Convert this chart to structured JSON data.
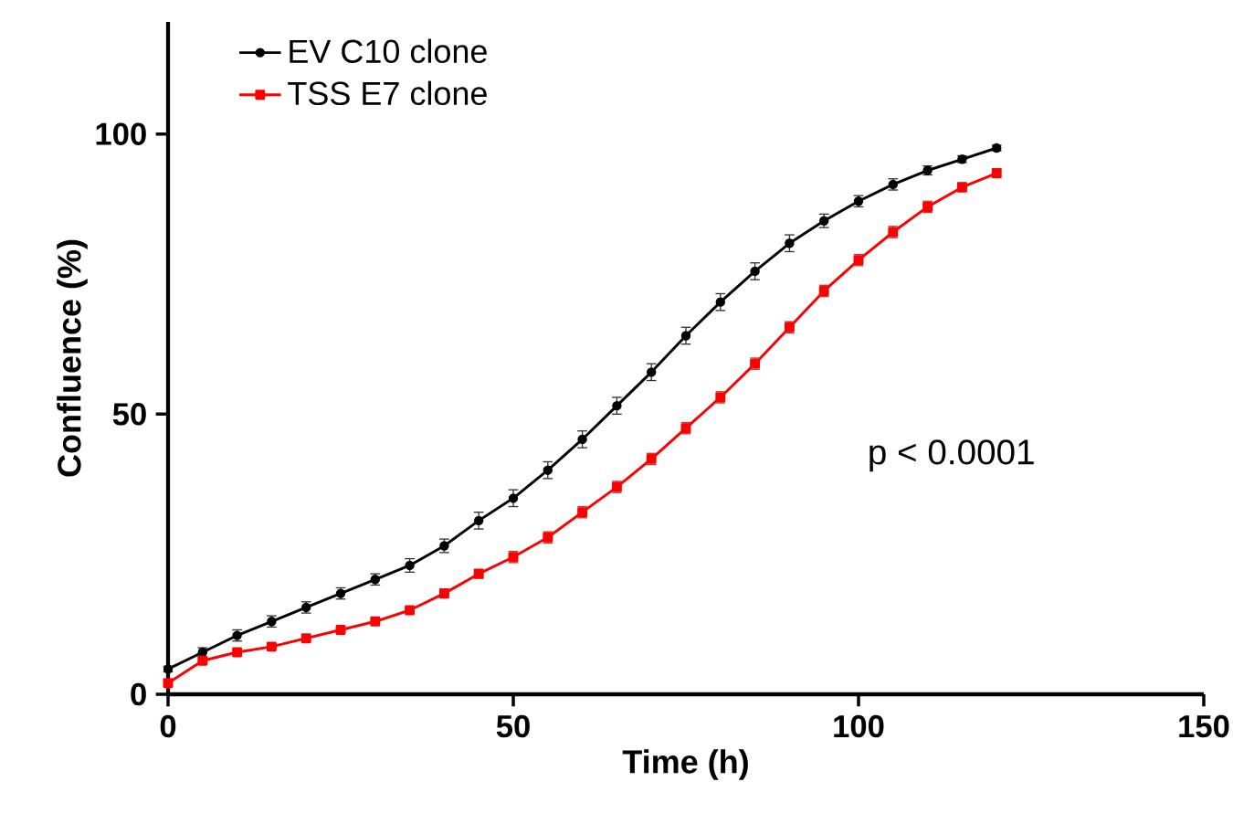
{
  "chart_data": {
    "type": "line",
    "xlabel": "Time (h)",
    "ylabel": "Confluence (%)",
    "x": [
      0,
      5,
      10,
      15,
      20,
      25,
      30,
      35,
      40,
      45,
      50,
      55,
      60,
      65,
      70,
      75,
      80,
      85,
      90,
      95,
      100,
      105,
      110,
      115,
      120
    ],
    "series": [
      {
        "name": "EV C10 clone",
        "color": "#000000",
        "marker": "circle",
        "values": [
          4.5,
          7.5,
          10.5,
          13,
          15.5,
          18,
          20.5,
          23,
          26.5,
          31,
          35,
          40,
          45.5,
          51.5,
          57.5,
          64,
          70,
          75.5,
          80.5,
          84.5,
          88,
          91,
          93.5,
          95.5,
          97.5
        ],
        "errors": [
          0.5,
          0.8,
          1,
          1,
          1,
          1,
          1,
          1.2,
          1.2,
          1.5,
          1.5,
          1.5,
          1.5,
          1.5,
          1.5,
          1.5,
          1.5,
          1.5,
          1.5,
          1.2,
          1,
          1,
          0.8,
          0.6,
          0.5
        ]
      },
      {
        "name": "TSS E7 clone",
        "color": "#ff0000",
        "marker": "square",
        "values": [
          2,
          6,
          7.5,
          8.5,
          10,
          11.5,
          13,
          15,
          18,
          21.5,
          24.5,
          28,
          32.5,
          37,
          42,
          47.5,
          53,
          59,
          65.5,
          72,
          77.5,
          82.5,
          87,
          90.5,
          93
        ],
        "errors": [
          null,
          null,
          null,
          null,
          null,
          null,
          null,
          null,
          0.8,
          0.8,
          1,
          1,
          1,
          1,
          1,
          1,
          1,
          1,
          1,
          1,
          1,
          1,
          1,
          0.8,
          0.8
        ]
      }
    ],
    "xlim": [
      0,
      150
    ],
    "ylim": [
      0,
      120
    ],
    "xticks": [
      0,
      50,
      100,
      150
    ],
    "yticks": [
      0,
      50,
      100
    ],
    "annotations": [
      "p < 0.0001"
    ],
    "legend": "top left",
    "grid": false,
    "line_style": "solid"
  }
}
